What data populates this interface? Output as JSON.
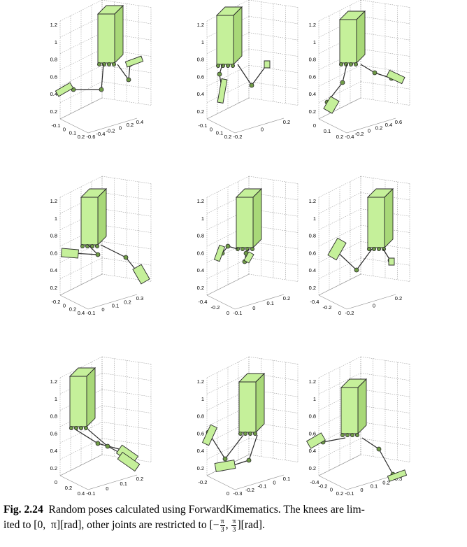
{
  "caption": {
    "label": "Fig. 2.24",
    "text_line1": "Random poses calculated using ForwardKimematics. The knees are lim-",
    "text_line2a": "ited to [0,",
    "pi": "π",
    "text_line2b": "][rad], other joints are restricted to [",
    "neg_num": "−",
    "frac_num_a": "π",
    "frac_den_a": "3",
    "comma": ", ",
    "frac_num_b": "π",
    "frac_den_b": "3",
    "text_line2c": "][rad]."
  },
  "colors": {
    "body_fill": "#c5f09a",
    "body_side": "#a8d878",
    "edge": "#2a2a2a",
    "joint": "#6f9b47",
    "grid": "#8a8a8a"
  },
  "panels": [
    {
      "z_ticks": [
        "1.2",
        "1",
        "0.8",
        "0.6",
        "0.4",
        "0.2"
      ],
      "x_ticks": [
        "-0.1",
        "0",
        "0.1",
        "0.2"
      ],
      "y_ticks": [
        "-0.6",
        "-0.4",
        "-0.2",
        "0",
        "0.2",
        "0.4"
      ]
    },
    {
      "z_ticks": [
        "1.2",
        "1",
        "0.8",
        "0.6",
        "0.4",
        "0.2"
      ],
      "x_ticks": [
        "-0.1",
        "0",
        "0.1",
        "0.2"
      ],
      "y_ticks": [
        "-0.2",
        "0",
        "0.2"
      ]
    },
    {
      "z_ticks": [
        "1.2",
        "1",
        "0.8",
        "0.6",
        "0.4",
        "0.2"
      ],
      "x_ticks": [
        "0",
        "0.1",
        "0.2"
      ],
      "y_ticks": [
        "-0.4",
        "-0.2",
        "0",
        "0.2",
        "0.4",
        "0.6"
      ]
    },
    {
      "z_ticks": [
        "1.2",
        "1",
        "0.8",
        "0.6",
        "0.4",
        "0.2"
      ],
      "x_ticks": [
        "-0.2",
        "0",
        "0.2",
        "0.4"
      ],
      "y_ticks": [
        "-0.1",
        "0",
        "0.1",
        "0.2",
        "0.3"
      ]
    },
    {
      "z_ticks": [
        "1.2",
        "1",
        "0.8",
        "0.6",
        "0.4",
        "0.2"
      ],
      "x_ticks": [
        "-0.4",
        "-0.2",
        "0"
      ],
      "y_ticks": [
        "-0.1",
        "0",
        "0.1",
        "0.2"
      ]
    },
    {
      "z_ticks": [
        "1.2",
        "1",
        "0.8",
        "0.6",
        "0.4",
        "0.2"
      ],
      "x_ticks": [
        "-0.4",
        "-0.2",
        "0"
      ],
      "y_ticks": [
        "-0.2",
        "0",
        "0.2"
      ]
    },
    {
      "z_ticks": [
        "1.2",
        "1",
        "0.8",
        "0.6",
        "0.4",
        "0.2"
      ],
      "x_ticks": [
        "0",
        "0.2",
        "0.4"
      ],
      "y_ticks": [
        "-0.1",
        "0",
        "0.1",
        "0.2"
      ]
    },
    {
      "z_ticks": [
        "1.2",
        "1",
        "0.8",
        "0.6",
        "0.4",
        "0.2"
      ],
      "x_ticks": [
        "-0.2",
        "0"
      ],
      "y_ticks": [
        "-0.3",
        "-0.2",
        "-0.1",
        "0",
        "0.1"
      ]
    },
    {
      "z_ticks": [
        "1.2",
        "1",
        "0.8",
        "0.6",
        "0.4",
        "0.2"
      ],
      "x_ticks": [
        "-0.4",
        "-0.2",
        "0",
        "0.2"
      ],
      "y_ticks": [
        "-0.1",
        "0",
        "0.1",
        "0.2",
        "0.3"
      ]
    }
  ]
}
